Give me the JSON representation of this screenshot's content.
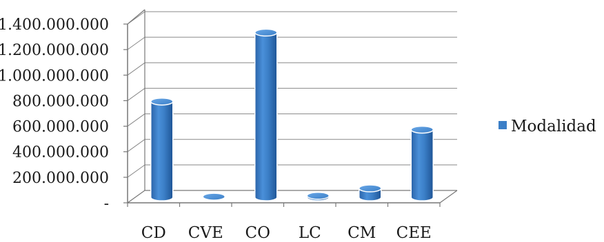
{
  "chart_data": {
    "type": "bar",
    "style": "3d-cylinder",
    "categories": [
      "CD",
      "CVE",
      "CO",
      "LC",
      "CM",
      "CEE"
    ],
    "series": [
      {
        "name": "Modalidad",
        "color": "#3b7fc7",
        "values": [
          750000000,
          5000000,
          1290000000,
          12000000,
          70000000,
          530000000
        ]
      }
    ],
    "yticks": [
      "-",
      "200.000.000",
      "400.000.000",
      "600.000.000",
      "800.000.000",
      "1.000.000.000",
      "1.200.000.000",
      "1.400.000.000"
    ],
    "ylim": [
      0,
      1400000000
    ],
    "grid": true,
    "legend_position": "right",
    "title": "",
    "xlabel": "",
    "ylabel": ""
  }
}
